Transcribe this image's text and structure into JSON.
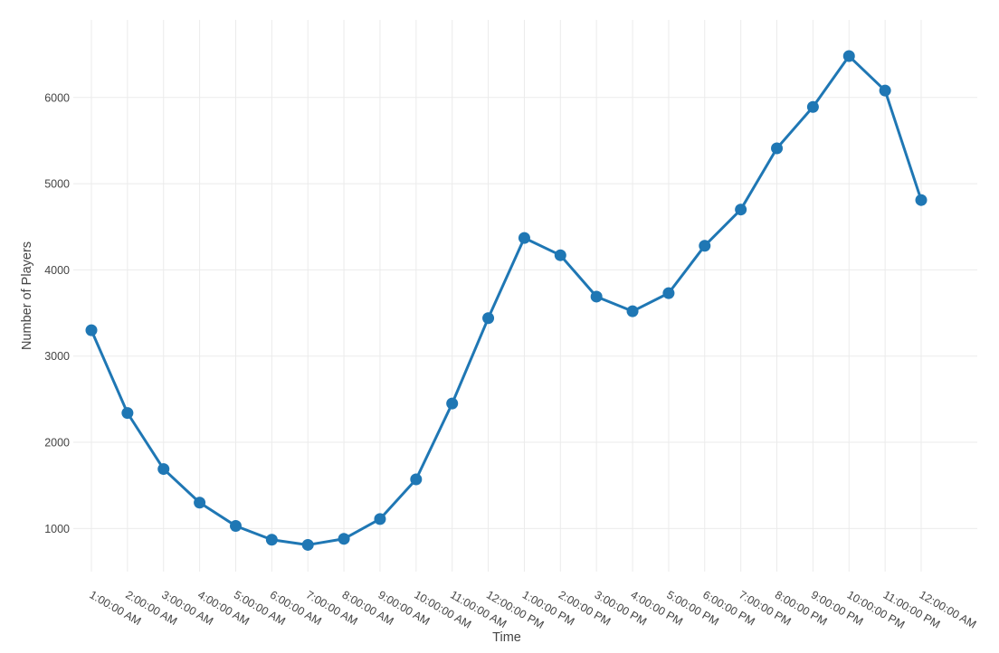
{
  "chart_data": {
    "type": "line",
    "title": "",
    "xlabel": "Time",
    "ylabel": "Number of Players",
    "categories": [
      "1:00:00 AM",
      "2:00:00 AM",
      "3:00:00 AM",
      "4:00:00 AM",
      "5:00:00 AM",
      "6:00:00 AM",
      "7:00:00 AM",
      "8:00:00 AM",
      "9:00:00 AM",
      "10:00:00 AM",
      "11:00:00 AM",
      "12:00:00 PM",
      "1:00:00 PM",
      "2:00:00 PM",
      "3:00:00 PM",
      "4:00:00 PM",
      "5:00:00 PM",
      "6:00:00 PM",
      "7:00:00 PM",
      "8:00:00 PM",
      "9:00:00 PM",
      "10:00:00 PM",
      "11:00:00 PM",
      "12:00:00 AM"
    ],
    "values": [
      3300,
      2340,
      1690,
      1300,
      1030,
      870,
      810,
      880,
      1110,
      1570,
      2450,
      3440,
      4370,
      4170,
      3690,
      3520,
      3730,
      4280,
      4700,
      5410,
      5890,
      6480,
      6080,
      4810
    ],
    "yticks": [
      1000,
      2000,
      3000,
      4000,
      5000,
      6000
    ],
    "ylim": [
      500,
      6900
    ],
    "grid": true,
    "legend": false,
    "tick_angle_deg": 30,
    "line_color": "#1f77b4",
    "marker_color": "#1f77b4",
    "grid_color": "#ebebeb",
    "text_color": "#444444",
    "background_color": "#ffffff"
  }
}
